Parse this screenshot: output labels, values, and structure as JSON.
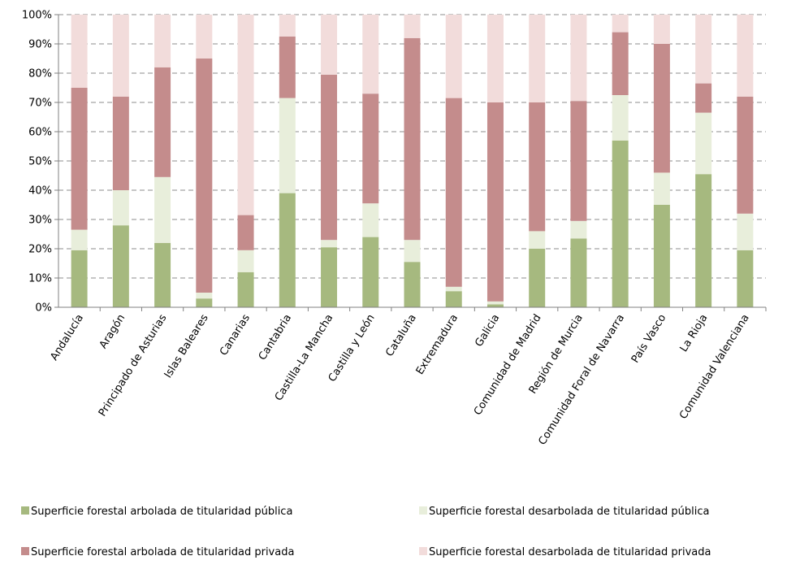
{
  "chart_data": {
    "type": "bar",
    "stacked": true,
    "categories": [
      "Andalucía",
      "Aragón",
      "Principado de Asturias",
      "Islas Baleares",
      "Canarias",
      "Cantabria",
      "Castilla-La Mancha",
      "Castilla y León",
      "Cataluña",
      "Extremadura",
      "Galicia",
      "Comunidad de Madrid",
      "Región de Murcia",
      "Comunidad Foral de Navarra",
      "País Vasco",
      "La Rioja",
      "Comunidad Valenciana"
    ],
    "series": [
      {
        "name": "Superficie forestal arbolada de titularidad pública",
        "color": "#a6b97f",
        "values": [
          19.5,
          28,
          22,
          3,
          12,
          39,
          20.5,
          24,
          15.5,
          5.5,
          1,
          20,
          23.5,
          57,
          35,
          45.5,
          19.5
        ]
      },
      {
        "name": "Superficie forestal desarbolada de titularidad pública",
        "color": "#e8eedb",
        "values": [
          7,
          12,
          22.5,
          2,
          7.5,
          32.5,
          2.5,
          11.5,
          7.5,
          1.5,
          1,
          6,
          6,
          15.5,
          11,
          21,
          12.5
        ]
      },
      {
        "name": "Superficie forestal arbolada de titularidad privada",
        "color": "#c48c8c",
        "values": [
          48.5,
          32,
          37.5,
          80,
          12,
          21,
          56.5,
          37.5,
          69,
          64.5,
          68,
          44,
          41,
          21.5,
          44,
          10,
          40
        ]
      },
      {
        "name": "Superficie forestal desarbolada de titularidad privada",
        "color": "#f2dcdb",
        "values": [
          25,
          28,
          18,
          15,
          68.5,
          7.5,
          20.5,
          27,
          8,
          28.5,
          30,
          30,
          29.5,
          6,
          10,
          23.5,
          28
        ]
      }
    ],
    "y_axis": {
      "min": 0,
      "max": 100,
      "step": 10,
      "tick_labels": [
        "0%",
        "10%",
        "20%",
        "30%",
        "40%",
        "50%",
        "60%",
        "70%",
        "80%",
        "90%",
        "100%"
      ]
    },
    "gridlines": "dashed horizontal",
    "legend_position": "bottom"
  }
}
